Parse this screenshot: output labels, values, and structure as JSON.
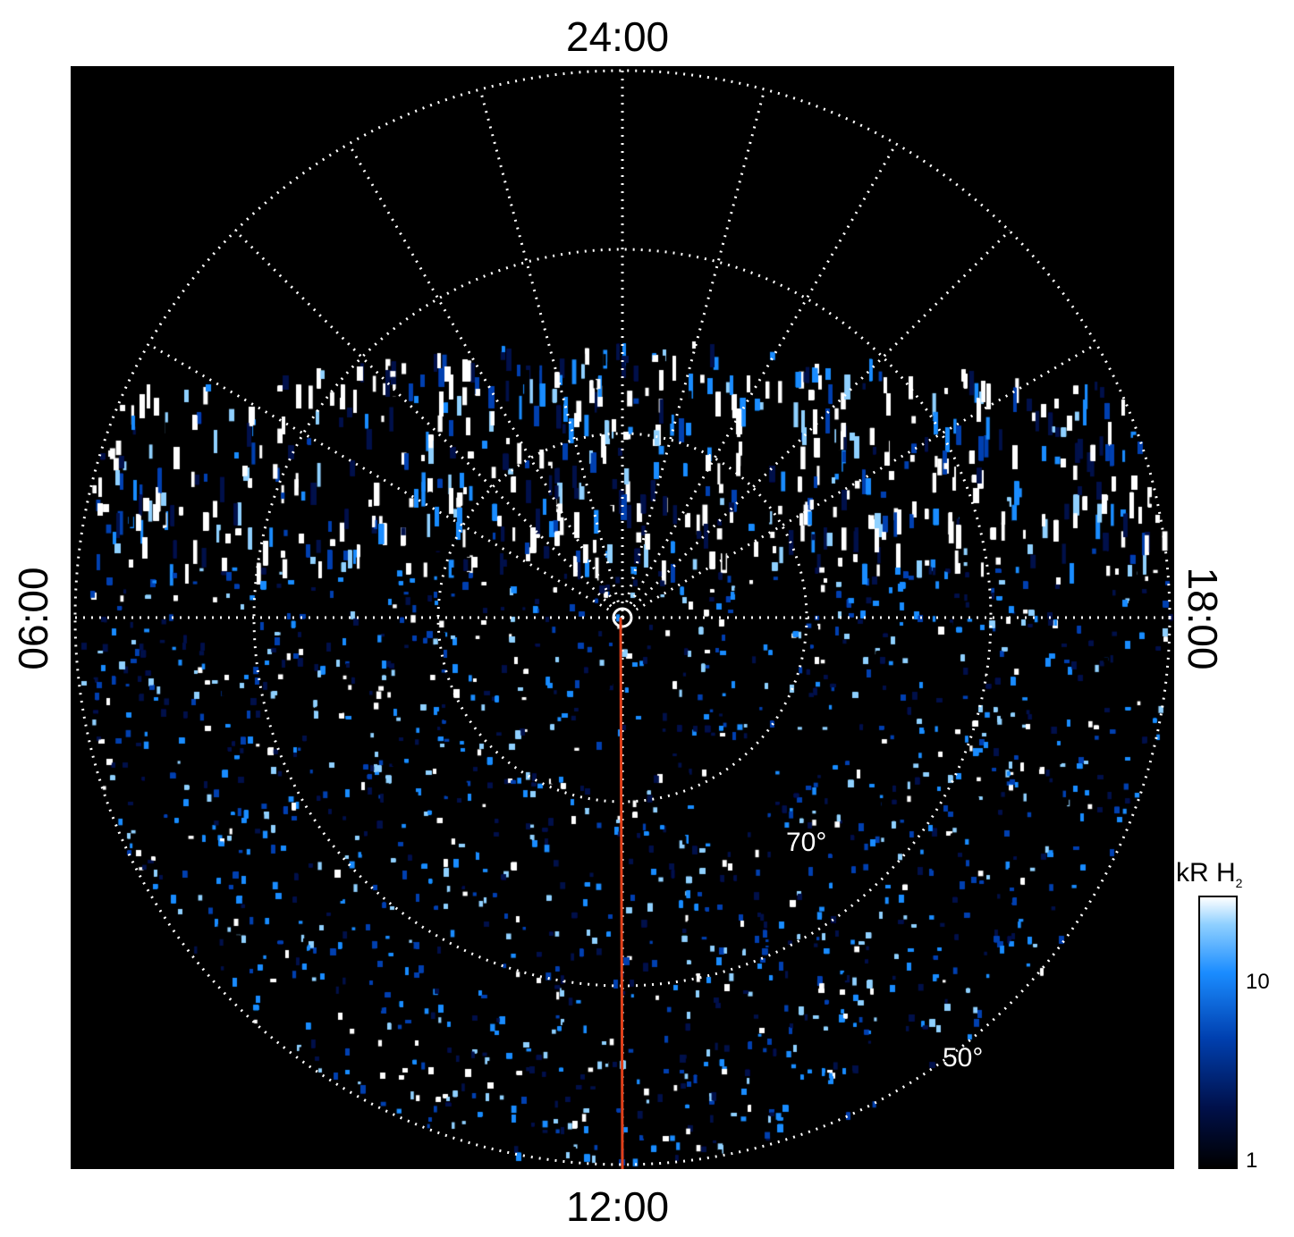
{
  "local_time_labels": {
    "top": "24:00",
    "bottom": "12:00",
    "left": "06:00",
    "right": "18:00"
  },
  "latitude_labels": {
    "inner": "70°",
    "outer": "50°"
  },
  "colorbar": {
    "title_main": "kR H",
    "title_sub": "2",
    "ticks": [
      "10",
      "1"
    ],
    "colors": [
      "#000000",
      "#00104a",
      "#0040b0",
      "#1a8cff",
      "#8fd0ff",
      "#ffffff"
    ]
  },
  "colors": {
    "background": "#000000",
    "grid": "#ffffff",
    "meridian_line": "#e0401a",
    "aurora_blue": "#1a8cff"
  }
}
